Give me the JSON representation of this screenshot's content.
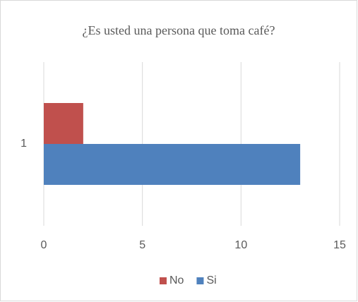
{
  "chart_data": {
    "type": "bar",
    "orientation": "horizontal",
    "title": "¿Es usted una persona que toma café?",
    "categories": [
      "1"
    ],
    "series": [
      {
        "name": "No",
        "color": "#c0504d",
        "values": [
          2
        ]
      },
      {
        "name": "Si",
        "color": "#4f81bd",
        "values": [
          13
        ]
      }
    ],
    "xlim": [
      0,
      15
    ],
    "xticks": [
      0,
      5,
      10,
      15
    ],
    "grid": true,
    "legend": "bottom"
  }
}
